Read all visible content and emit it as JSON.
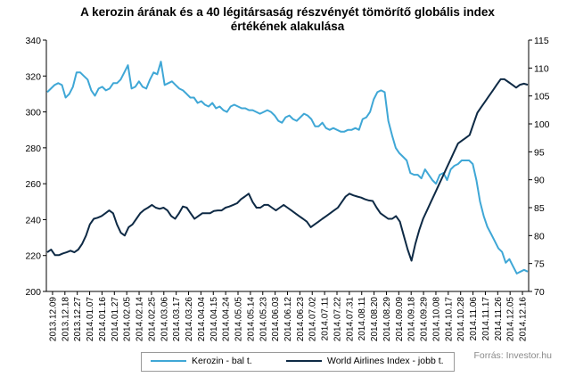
{
  "title_line1": "A kerozin  árának és a 40 légitársaság részvényét tömörítő  globális index",
  "title_line2": "értékének  alakulása",
  "source": "Forrás: Investor.hu",
  "chart_data": {
    "type": "line",
    "title": "A kerozin  árának és a 40 légitársaság részvényét tömörítő  globális index értékének  alakulása",
    "x_tick_labels": [
      "2013.12.09",
      "2013.12.18",
      "2013.12.27",
      "2014.01.07",
      "2014.01.16",
      "2014.01.27",
      "2014.02.05",
      "2014.02.14",
      "2014.02.25",
      "2014.03.06",
      "2014.03.17",
      "2014.03.26",
      "2014.04.04",
      "2014.04.15",
      "2014.04.24",
      "2014.05.05",
      "2014.05.14",
      "2014.05.23",
      "2014.06.03",
      "2014.06.12",
      "2014.06.23",
      "2014.07.02",
      "2014.07.11",
      "2014.07.22",
      "2014.07.31",
      "2014.08.11",
      "2014.08.20",
      "2014.08.29",
      "2014.09.09",
      "2014.09.18",
      "2014.09.29",
      "2014.10.08",
      "2014.10.17",
      "2014.10.28",
      "2014.11.06",
      "2014.11.17",
      "2014.11.26",
      "2014.12.05",
      "2014.12.16"
    ],
    "y_left": {
      "ticks": [
        200,
        220,
        240,
        260,
        280,
        300,
        320,
        340
      ],
      "ylim": [
        200,
        340
      ]
    },
    "y_right": {
      "ticks": [
        70,
        75,
        80,
        85,
        90,
        95,
        100,
        105,
        110,
        115
      ],
      "ylim": [
        70,
        115
      ]
    },
    "grid": false,
    "legend_position": "bottom",
    "series": [
      {
        "name": "Kerozin - bal t.",
        "axis": "left",
        "color": "#3fa7d6",
        "values": [
          311,
          313,
          315,
          316,
          315,
          308,
          310,
          314,
          322,
          322,
          320,
          318,
          312,
          309,
          313,
          314,
          312,
          313,
          316,
          316,
          318,
          322,
          326,
          313,
          314,
          317,
          314,
          313,
          318,
          322,
          321,
          328,
          315,
          316,
          317,
          315,
          313,
          312,
          310,
          308,
          308,
          305,
          306,
          304,
          303,
          305,
          302,
          303,
          301,
          300,
          303,
          304,
          303,
          302,
          302,
          301,
          301,
          300,
          299,
          300,
          301,
          300,
          298,
          295,
          294,
          297,
          298,
          296,
          295,
          297,
          299,
          298,
          296,
          292,
          292,
          294,
          291,
          290,
          291,
          290,
          289,
          289,
          290,
          290,
          291,
          290,
          296,
          297,
          300,
          307,
          311,
          312,
          311,
          295,
          287,
          280,
          277,
          275,
          273,
          266,
          265,
          265,
          263,
          268,
          265,
          262,
          260,
          265,
          266,
          262,
          268,
          270,
          271,
          273,
          273,
          273,
          271,
          262,
          250,
          242,
          236,
          232,
          228,
          224,
          222,
          216,
          218,
          214,
          210,
          211,
          212,
          211
        ]
      },
      {
        "name": "World Airlines Index - jobb t.",
        "axis": "right",
        "color": "#0e2a45",
        "values": [
          77,
          77.5,
          76.5,
          76.5,
          76.8,
          77,
          77.3,
          77,
          77.5,
          78.5,
          80,
          82,
          83,
          83.2,
          83.5,
          84,
          84.5,
          84,
          82,
          80.5,
          80,
          81.5,
          82,
          83,
          84,
          84.6,
          85,
          85.5,
          85,
          84.8,
          85,
          84.5,
          83.5,
          83,
          84,
          85.2,
          85,
          84,
          83,
          83.5,
          84,
          84,
          84,
          84.4,
          84.5,
          84.5,
          85,
          85.2,
          85.5,
          85.8,
          86.5,
          87,
          87.5,
          86,
          85,
          85,
          85.5,
          85.5,
          85,
          84.5,
          85,
          85.5,
          85,
          84.5,
          84,
          83.5,
          83,
          82.5,
          81.5,
          82,
          82.5,
          83,
          83.5,
          84,
          84.5,
          85,
          86,
          87,
          87.5,
          87.2,
          87,
          86.8,
          86.5,
          86.3,
          86.2,
          85,
          84,
          83.5,
          83,
          83,
          83.5,
          82.5,
          80,
          77.5,
          75.5,
          78.5,
          81,
          83,
          84.5,
          86,
          87.5,
          89,
          90.5,
          92,
          93.5,
          95,
          96.5,
          97,
          97.5,
          98,
          100,
          102,
          103,
          104,
          105,
          106,
          107,
          108,
          108,
          107.5,
          107,
          106.5,
          107,
          107.2,
          107
        ]
      }
    ]
  },
  "legend": {
    "kerozin_label": "Kerozin - bal t.",
    "index_label": "World Airlines Index - jobb t."
  },
  "colors": {
    "kerozin": "#3fa7d6",
    "index": "#0e2a45",
    "axis": "#000000"
  }
}
